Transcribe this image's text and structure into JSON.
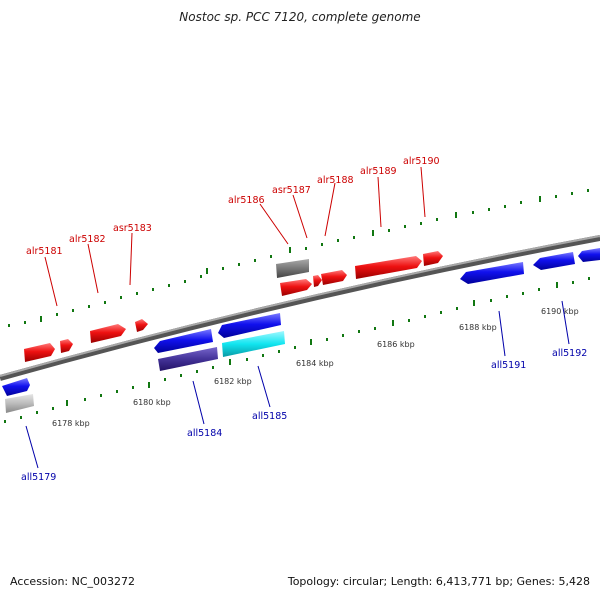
{
  "title": "Nostoc sp. PCC 7120, complete genome",
  "footer": {
    "accession": "Accession: NC_003272",
    "info": "Topology: circular; Length: 6,413,771 bp; Genes: 5,428"
  },
  "colors": {
    "forward_gene": "#ee1111",
    "reverse_gene": "#1111ee",
    "forward_label": "#cc0000",
    "reverse_label": "#0000aa",
    "backbone": "#777777",
    "tick": "#117711",
    "grey_gene": "#777777",
    "light_grey_gene": "#bbbbbb",
    "cyan_gene": "#11e5f0",
    "navy_gene": "#443399"
  },
  "scale_labels": [
    "6178 kbp",
    "6180 kbp",
    "6182 kbp",
    "6184 kbp",
    "6186 kbp",
    "6188 kbp",
    "6190 kbp"
  ],
  "forward_gene_labels": [
    "alr5181",
    "alr5182",
    "asr5183",
    "alr5186",
    "asr5187",
    "alr5188",
    "alr5189",
    "alr5190"
  ],
  "reverse_gene_labels": [
    "all5179",
    "all5184",
    "all5185",
    "all5191",
    "all5192"
  ]
}
